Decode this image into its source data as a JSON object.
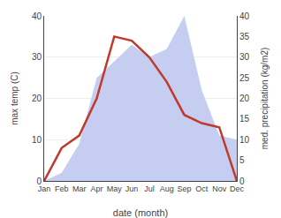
{
  "chart_data": {
    "type": "line",
    "categories": [
      "Jan",
      "Feb",
      "Mar",
      "Apr",
      "May",
      "Jun",
      "Jul",
      "Aug",
      "Sep",
      "Oct",
      "Nov",
      "Dec"
    ],
    "series": [
      {
        "type": "area",
        "axis": "y2",
        "color": "#c5cef0",
        "values": [
          0,
          2,
          9,
          25,
          29,
          33,
          30,
          32,
          40,
          22,
          11,
          10
        ]
      },
      {
        "type": "line",
        "color": "#c0392b",
        "values": [
          0,
          8,
          11,
          20,
          35,
          34,
          30,
          24,
          16,
          14,
          13,
          0
        ]
      }
    ],
    "xlabel": "date (month)",
    "ylabel": "max temp (C)",
    "y2label": "med. precipitation (kg/m2)",
    "ylim": [
      0,
      40
    ],
    "yticks": [
      0,
      10,
      20,
      30,
      40
    ],
    "y2lim": [
      0,
      40
    ],
    "y2ticks": [
      0,
      5,
      10,
      15,
      20,
      25,
      30,
      35,
      40
    ],
    "grid": true
  }
}
